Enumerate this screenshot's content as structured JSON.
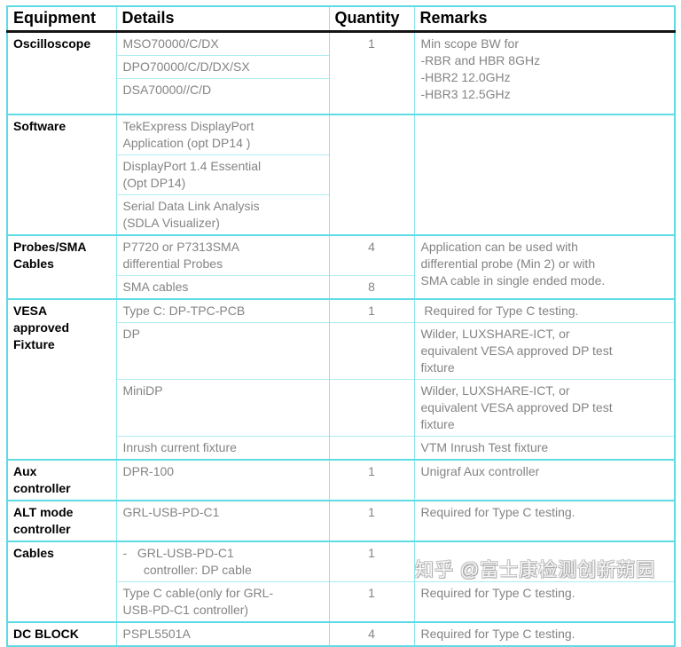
{
  "watermark": "知乎 @富士康检测创新蒴园",
  "colors": {
    "table_border": "#5edbe4",
    "inner_line": "#aeecf1",
    "column_line": "#8ce5ec",
    "header_rule": "#151515",
    "body_text": "#848484",
    "heading_text": "#000000"
  },
  "table": {
    "headers": [
      "Equipment",
      "Details",
      "Quantity",
      "Remarks"
    ],
    "rows": [
      {
        "group_start": false,
        "cells": [
          {
            "col": "equipment",
            "rowspan": 3,
            "text": "Oscilloscope"
          },
          {
            "col": "details",
            "text": "MSO70000/C/DX"
          },
          {
            "col": "quantity",
            "rowspan": 3,
            "text": "1"
          },
          {
            "col": "remarks",
            "rowspan": 3,
            "text": "Min scope BW for\n-RBR and HBR 8GHz\n-HBR2 12.0GHz\n-HBR3 12.5GHz"
          }
        ]
      },
      {
        "cells": [
          {
            "col": "details",
            "text": "DPO70000/C/D/DX/SX"
          }
        ]
      },
      {
        "cells": [
          {
            "col": "details",
            "cls": "pad-b",
            "text": "DSA70000//C/D"
          }
        ]
      },
      {
        "group_start": true,
        "cells": [
          {
            "col": "equipment",
            "rowspan": 3,
            "text": "Software"
          },
          {
            "col": "details",
            "text": "TekExpress DisplayPort\nApplication (opt DP14 )"
          },
          {
            "col": "quantity",
            "rowspan": 3,
            "text": ""
          },
          {
            "col": "remarks",
            "rowspan": 3,
            "text": ""
          }
        ]
      },
      {
        "cells": [
          {
            "col": "details",
            "text": "DisplayPort 1.4 Essential\n(Opt DP14)"
          }
        ]
      },
      {
        "cells": [
          {
            "col": "details",
            "text": "Serial Data Link Analysis\n(SDLA Visualizer)"
          }
        ]
      },
      {
        "group_start": true,
        "cells": [
          {
            "col": "equipment",
            "rowspan": 2,
            "text": "Probes/SMA\nCables"
          },
          {
            "col": "details",
            "text": "P7720 or P7313SMA\ndifferential Probes"
          },
          {
            "col": "quantity",
            "text": "4"
          },
          {
            "col": "remarks",
            "rowspan": 2,
            "text": "Application can be used with\ndifferential probe (Min 2) or with\nSMA cable in single ended mode."
          }
        ]
      },
      {
        "cells": [
          {
            "col": "details",
            "text": "SMA cables"
          },
          {
            "col": "quantity",
            "text": "8"
          }
        ]
      },
      {
        "group_start": true,
        "cells": [
          {
            "col": "equipment",
            "rowspan": 4,
            "text": "VESA\napproved\nFixture"
          },
          {
            "col": "details",
            "text": "Type C: DP-TPC-PCB"
          },
          {
            "col": "quantity",
            "text": "1"
          },
          {
            "col": "remarks",
            "text": " Required for Type C testing."
          }
        ]
      },
      {
        "cells": [
          {
            "col": "details",
            "text": "DP"
          },
          {
            "col": "quantity",
            "text": ""
          },
          {
            "col": "remarks",
            "text": "Wilder, LUXSHARE-ICT, or\nequivalent VESA approved DP test\nfixture"
          }
        ]
      },
      {
        "cells": [
          {
            "col": "details",
            "text": "MiniDP"
          },
          {
            "col": "quantity",
            "text": ""
          },
          {
            "col": "remarks",
            "text": "Wilder, LUXSHARE-ICT, or\nequivalent VESA approved DP test\nfixture"
          }
        ]
      },
      {
        "cells": [
          {
            "col": "details",
            "text": "Inrush current fixture"
          },
          {
            "col": "quantity",
            "text": ""
          },
          {
            "col": "remarks",
            "text": "VTM Inrush Test fixture"
          }
        ]
      },
      {
        "group_start": true,
        "cells": [
          {
            "col": "equipment",
            "text": "Aux\ncontroller"
          },
          {
            "col": "details",
            "text": "DPR-100"
          },
          {
            "col": "quantity",
            "text": "1"
          },
          {
            "col": "remarks",
            "text": "Unigraf Aux controller"
          }
        ]
      },
      {
        "group_start": true,
        "cells": [
          {
            "col": "equipment",
            "text": "ALT mode\ncontroller"
          },
          {
            "col": "details",
            "text": "GRL-USB-PD-C1"
          },
          {
            "col": "quantity",
            "text": "1"
          },
          {
            "col": "remarks",
            "text": "Required for Type C testing."
          }
        ]
      },
      {
        "group_start": true,
        "cells": [
          {
            "col": "equipment",
            "rowspan": 2,
            "text": "Cables"
          },
          {
            "col": "details",
            "text": "-   GRL-USB-PD-C1\n      controller: DP cable"
          },
          {
            "col": "quantity",
            "text": "1"
          },
          {
            "col": "remarks",
            "text": ""
          }
        ]
      },
      {
        "cells": [
          {
            "col": "details",
            "text": "Type C cable(only for GRL-\nUSB-PD-C1 controller)"
          },
          {
            "col": "quantity",
            "text": "1"
          },
          {
            "col": "remarks",
            "text": "Required for Type C testing."
          }
        ]
      },
      {
        "group_start": true,
        "cells": [
          {
            "col": "equipment",
            "text": "DC BLOCK"
          },
          {
            "col": "details",
            "text": "PSPL5501A"
          },
          {
            "col": "quantity",
            "text": "4"
          },
          {
            "col": "remarks",
            "text": "Required for Type C testing."
          }
        ]
      }
    ]
  }
}
